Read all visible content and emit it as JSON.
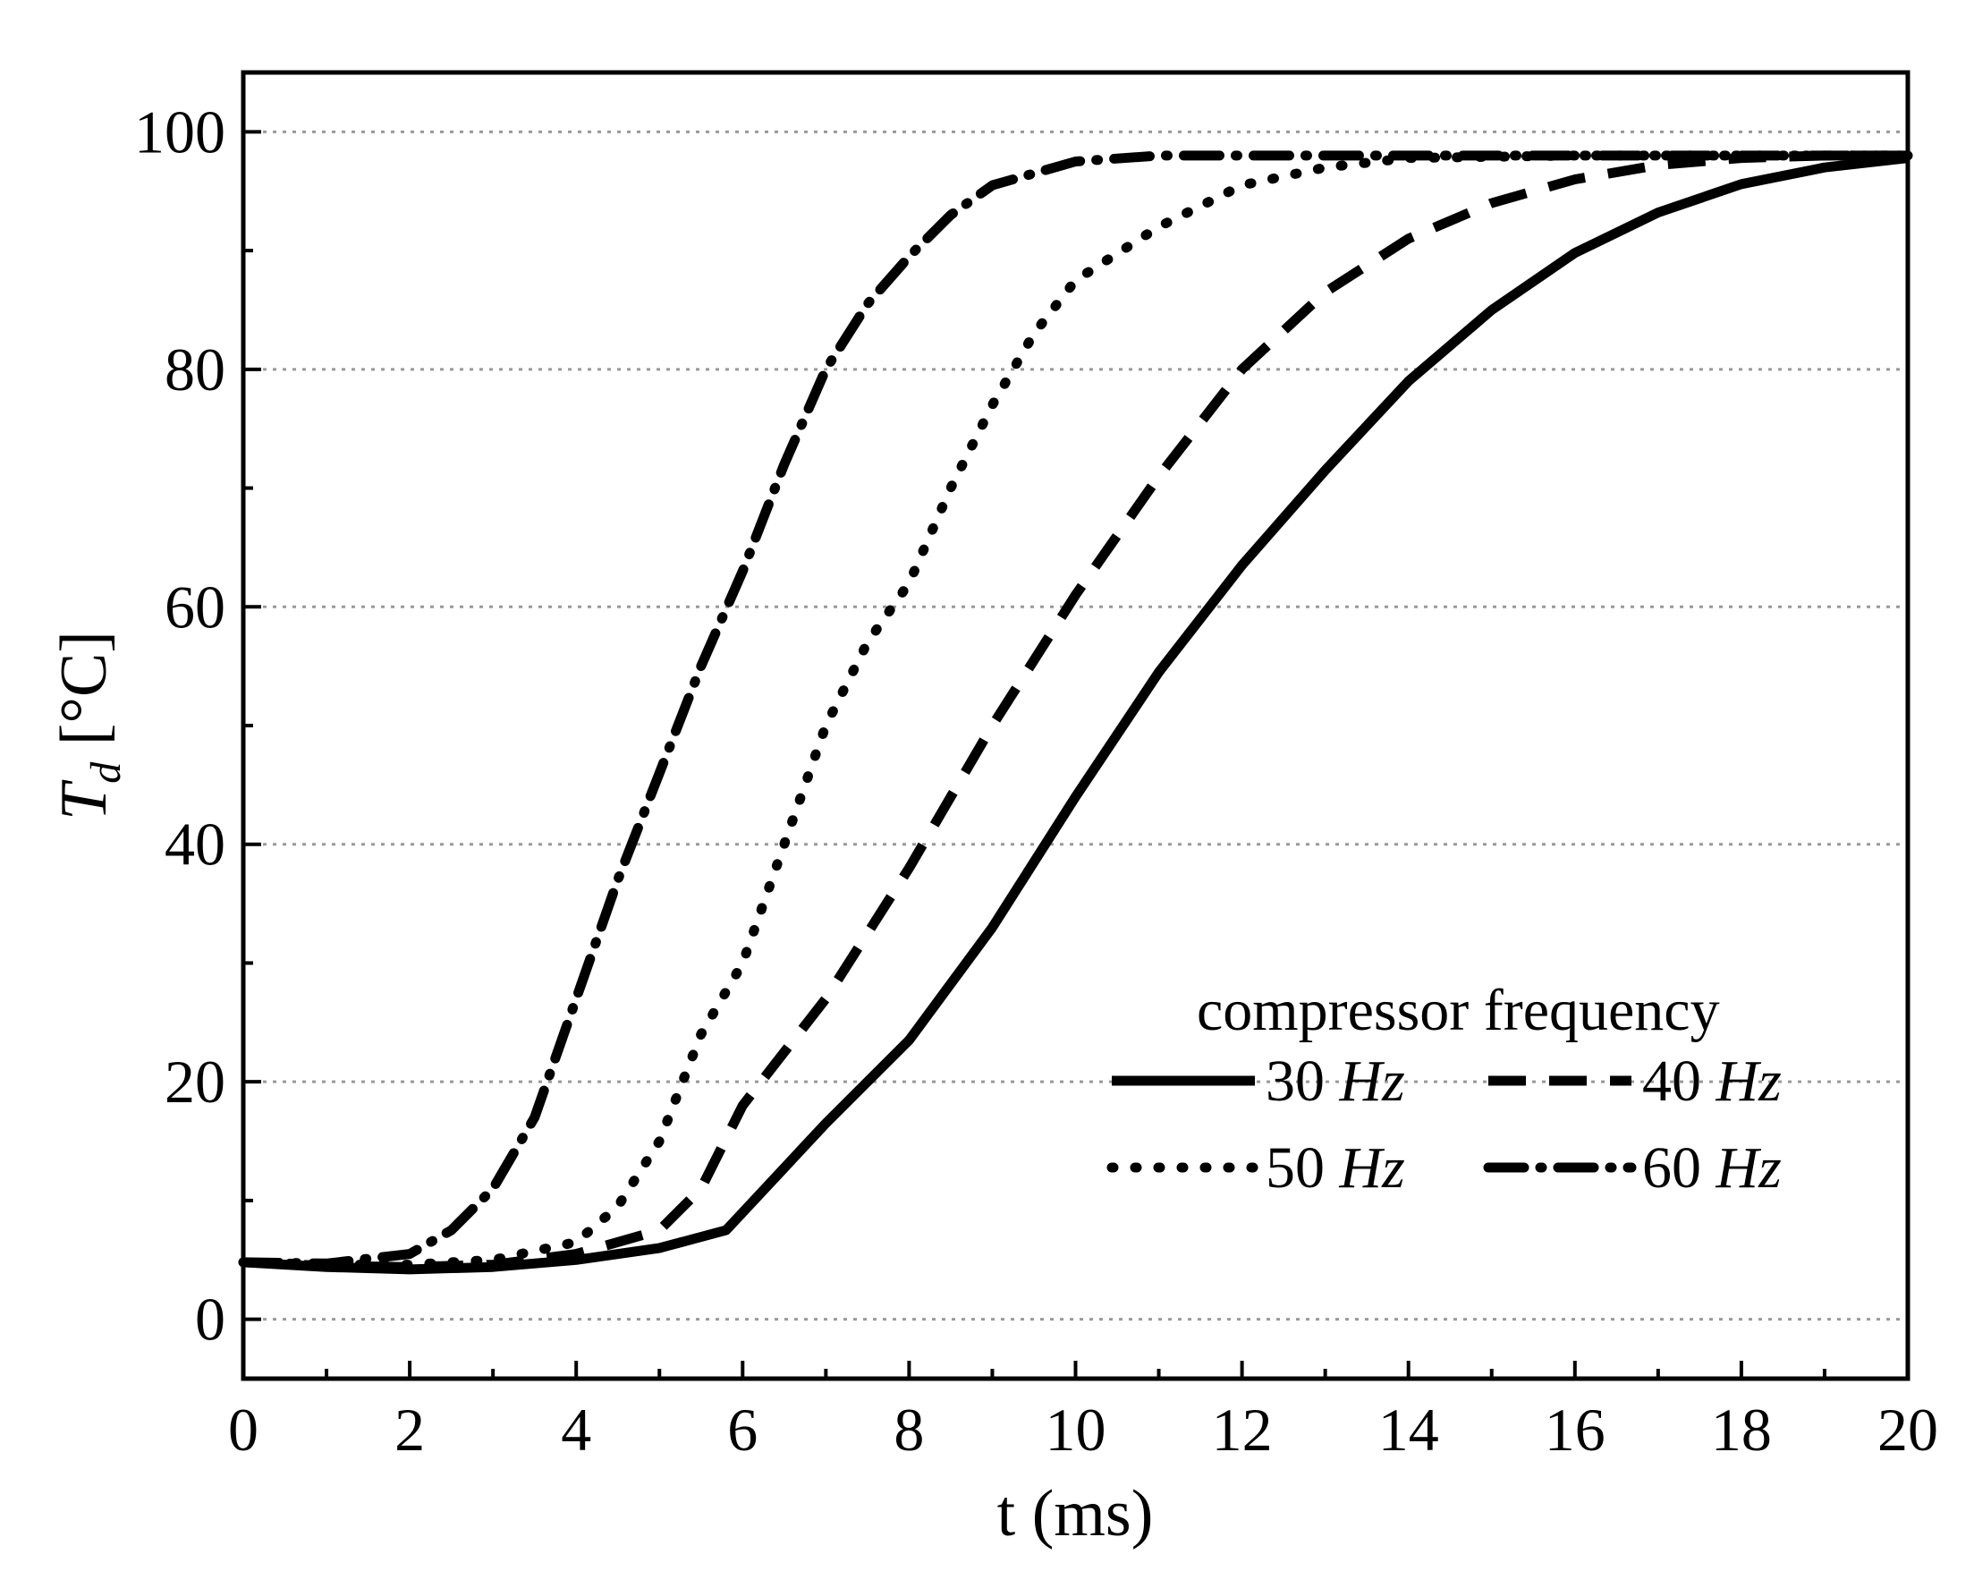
{
  "chart_data": {
    "type": "line",
    "title": "",
    "xlabel": "t (ms)",
    "ylabel": {
      "symbol": "T",
      "subscript": "d",
      "unit": " [°C]"
    },
    "xlim": [
      0,
      20
    ],
    "ylim": [
      -5,
      105
    ],
    "x_ticks": [
      0,
      2,
      4,
      6,
      8,
      10,
      12,
      14,
      16,
      18,
      20
    ],
    "y_ticks": [
      0,
      20,
      40,
      60,
      80,
      100
    ],
    "grid": "horizontal dotted at major y ticks",
    "legend": {
      "title": "compressor frequency",
      "placement": "bottom-right",
      "unit": "Hz"
    },
    "series": [
      {
        "name": "30 Hz",
        "freq": "30",
        "style": "solid",
        "x": [
          0,
          1,
          2,
          3,
          4,
          5,
          5.8,
          6,
          7,
          8,
          9,
          10,
          11,
          12,
          13,
          14,
          15,
          16,
          17,
          18,
          19,
          20
        ],
        "y": [
          4.8,
          4.4,
          4.2,
          4.4,
          5.0,
          6.0,
          7.5,
          9.0,
          16.5,
          23.5,
          33,
          44,
          54.5,
          63.5,
          71.5,
          79,
          85,
          89.8,
          93.2,
          95.6,
          97,
          97.8
        ]
      },
      {
        "name": "40 Hz",
        "freq": "40",
        "style": "dashed",
        "x": [
          0,
          1,
          2,
          3,
          4,
          5,
          5.5,
          6,
          7,
          8,
          9,
          10,
          11,
          12,
          13,
          14,
          15,
          16,
          17,
          18,
          19,
          20
        ],
        "y": [
          4.8,
          4.5,
          4.4,
          4.6,
          5.5,
          7.5,
          11,
          18,
          27,
          38,
          50,
          61,
          71,
          80,
          86.5,
          91,
          94,
          96,
          97.2,
          97.8,
          98,
          98
        ]
      },
      {
        "name": "50 Hz",
        "freq": "50",
        "style": "dotted",
        "x": [
          0,
          1,
          2,
          3,
          4,
          4.5,
          5,
          5.5,
          6,
          6.5,
          7,
          7.5,
          8,
          8.5,
          9,
          9.5,
          10,
          11,
          12,
          13,
          14,
          16,
          18,
          20
        ],
        "y": [
          4.8,
          4.6,
          4.6,
          5.0,
          6.5,
          9.5,
          15,
          24,
          30,
          40,
          50,
          57,
          62,
          70,
          77,
          83,
          87.5,
          92,
          95.5,
          97,
          97.8,
          98,
          98,
          98
        ]
      },
      {
        "name": "60 Hz",
        "freq": "60",
        "style": "dash-dot",
        "x": [
          0,
          1,
          2,
          2.5,
          3,
          3.5,
          4,
          4.5,
          5,
          5.5,
          6,
          6.5,
          7,
          7.5,
          8,
          8.5,
          9,
          10,
          11,
          12,
          14,
          16,
          18,
          20
        ],
        "y": [
          4.8,
          4.7,
          5.5,
          7.5,
          11,
          17,
          27,
          37,
          46,
          55,
          63,
          72,
          80,
          85.5,
          89.5,
          93,
          95.5,
          97.5,
          98,
          98,
          98,
          98,
          98,
          98
        ]
      }
    ]
  }
}
